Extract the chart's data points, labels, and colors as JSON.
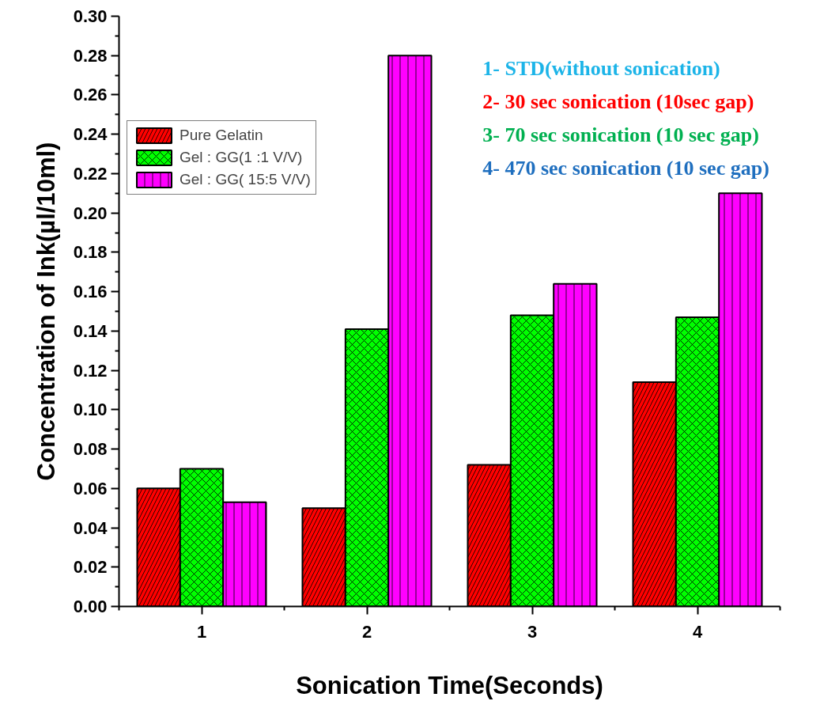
{
  "chart_data": {
    "type": "bar",
    "xlabel": "Sonication Time(Seconds)",
    "ylabel": "Concentration of Ink(µl/10ml)",
    "categories": [
      "1",
      "2",
      "3",
      "4"
    ],
    "series": [
      {
        "name": "Pure Gelatin",
        "color": "#ff0000",
        "values": [
          0.06,
          0.05,
          0.072,
          0.114
        ]
      },
      {
        "name": "Gel : GG(1 :1 V/V)",
        "color": "#00ff00",
        "values": [
          0.07,
          0.141,
          0.148,
          0.147
        ]
      },
      {
        "name": "Gel : GG( 15:5 V/V)",
        "color": "#ff00ff",
        "values": [
          0.053,
          0.28,
          0.164,
          0.21
        ]
      }
    ],
    "ylim": [
      0,
      0.3
    ],
    "yticks": [
      {
        "value": 0,
        "label": "0.00"
      },
      {
        "value": 0.02,
        "label": "0.02"
      },
      {
        "value": 0.04,
        "label": "0.04"
      },
      {
        "value": 0.06,
        "label": "0.06"
      },
      {
        "value": 0.08,
        "label": "0.08"
      },
      {
        "value": 0.1,
        "label": "0.10"
      },
      {
        "value": 0.12,
        "label": "0.12"
      },
      {
        "value": 0.14,
        "label": "0.14"
      },
      {
        "value": 0.16,
        "label": "0.16"
      },
      {
        "value": 0.18,
        "label": "0.18"
      },
      {
        "value": 0.2,
        "label": "0.20"
      },
      {
        "value": 0.22,
        "label": "0.22"
      },
      {
        "value": 0.24,
        "label": "0.24"
      },
      {
        "value": 0.26,
        "label": "0.26"
      },
      {
        "value": 0.28,
        "label": "0.28"
      },
      {
        "value": 0.3,
        "label": "0.30"
      }
    ],
    "annotations": [
      "1- STD(without sonication)",
      "2- 30 sec sonication (10sec gap)",
      "3- 70 sec sonication (10 sec gap)",
      "4- 470 sec sonication (10 sec gap)"
    ],
    "grid": false,
    "legend": "top left"
  }
}
